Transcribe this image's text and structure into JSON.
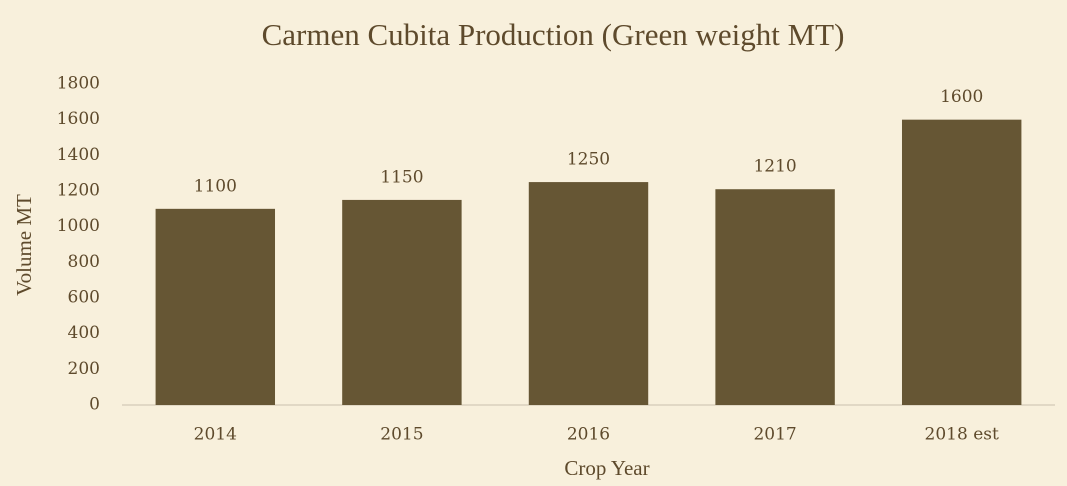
{
  "chart_data": {
    "type": "bar",
    "title": "Carmen Cubita Production (Green weight MT)",
    "x_label": "Crop Year",
    "y_label": "Volume MT",
    "categories": [
      "2014",
      "2015",
      "2016",
      "2017",
      "2018 est"
    ],
    "values": [
      1100,
      1150,
      1250,
      1210,
      1600
    ],
    "color": "#665634",
    "ylim": [
      0,
      1800
    ],
    "yticks": [
      0,
      200,
      400,
      600,
      800,
      1000,
      1200,
      1400,
      1600,
      1800
    ],
    "grid": false
  }
}
